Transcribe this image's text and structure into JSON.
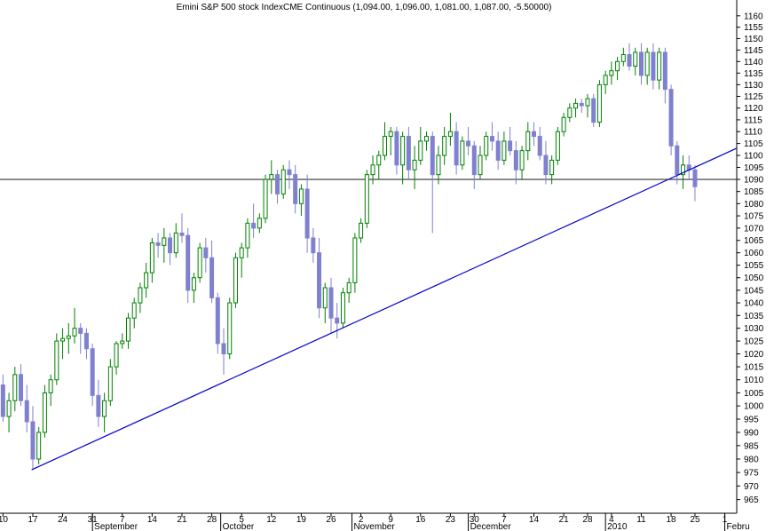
{
  "chart_data": {
    "type": "candlestick",
    "title": "Emini S&P 500 stock IndexCME Continuous (1,094.00, 1,096.00, 1,081.00, 1,087.00, -5.50000)",
    "log": true,
    "up_color": "#008000",
    "down_color": "#8080d0",
    "line_color": "#0000cc",
    "hline_color": "#333333",
    "x": [
      0,
      1,
      2,
      3,
      4,
      5,
      6,
      7,
      8,
      9,
      10,
      11,
      12,
      13,
      14,
      15,
      16,
      17,
      18,
      19,
      20,
      21,
      22,
      23,
      24,
      25,
      26,
      27,
      28,
      29,
      30,
      31,
      32,
      33,
      34,
      35,
      36,
      37,
      38,
      39,
      40,
      41,
      42,
      43,
      44,
      45,
      46,
      47,
      48,
      49,
      50,
      51,
      52,
      53,
      54,
      55,
      56,
      57,
      58,
      59,
      60,
      61,
      62,
      63,
      64,
      65,
      66,
      67,
      68,
      69,
      70,
      71,
      72,
      73,
      74,
      75,
      76,
      77,
      78,
      79,
      80,
      81,
      82,
      83,
      84,
      85,
      86,
      87,
      88,
      89,
      90,
      91,
      92,
      93,
      94,
      95,
      96,
      97,
      98,
      99,
      100,
      101,
      102,
      103,
      104,
      105,
      106,
      107,
      108,
      109,
      110,
      111,
      112,
      113,
      114,
      115,
      116
    ],
    "open": [
      1008,
      996,
      1002,
      1012,
      1002,
      994,
      980,
      990,
      1005,
      1010,
      1025,
      1026,
      1027,
      1030,
      1028,
      1022,
      1004,
      996,
      1002,
      1015,
      1024,
      1025,
      1034,
      1040,
      1046,
      1052,
      1064,
      1063,
      1066,
      1060,
      1068,
      1067,
      1045,
      1050,
      1062,
      1058,
      1042,
      1024,
      1020,
      1040,
      1058,
      1062,
      1072,
      1070,
      1074,
      1090,
      1092,
      1084,
      1094,
      1092,
      1080,
      1086,
      1066,
      1060,
      1038,
      1046,
      1034,
      1032,
      1044,
      1048,
      1066,
      1072,
      1092,
      1096,
      1100,
      1108,
      1110,
      1096,
      1108,
      1094,
      1098,
      1106,
      1108,
      1092,
      1100,
      1108,
      1110,
      1096,
      1106,
      1104,
      1092,
      1100,
      1108,
      1106,
      1098,
      1106,
      1102,
      1094,
      1102,
      1110,
      1108,
      1100,
      1092,
      1098,
      1110,
      1116,
      1120,
      1122,
      1121,
      1124,
      1114,
      1130,
      1134,
      1136,
      1140,
      1143,
      1138,
      1144,
      1134,
      1144,
      1132,
      1144,
      1128,
      1104,
      1092,
      1096,
      1094
    ],
    "high": [
      1012,
      1005,
      1015,
      1016,
      1008,
      1000,
      992,
      1008,
      1012,
      1028,
      1030,
      1032,
      1038,
      1032,
      1030,
      1024,
      1010,
      1005,
      1018,
      1025,
      1028,
      1036,
      1042,
      1048,
      1056,
      1066,
      1068,
      1070,
      1068,
      1072,
      1076,
      1070,
      1052,
      1064,
      1066,
      1065,
      1044,
      1030,
      1042,
      1060,
      1064,
      1074,
      1080,
      1076,
      1092,
      1098,
      1094,
      1096,
      1098,
      1096,
      1088,
      1092,
      1070,
      1066,
      1048,
      1050,
      1040,
      1046,
      1050,
      1068,
      1074,
      1094,
      1100,
      1102,
      1114,
      1112,
      1112,
      1110,
      1112,
      1104,
      1112,
      1110,
      1110,
      1104,
      1112,
      1118,
      1114,
      1108,
      1112,
      1106,
      1104,
      1110,
      1114,
      1110,
      1110,
      1112,
      1106,
      1104,
      1114,
      1114,
      1112,
      1106,
      1100,
      1112,
      1118,
      1122,
      1124,
      1124,
      1126,
      1126,
      1132,
      1136,
      1140,
      1142,
      1146,
      1148,
      1146,
      1148,
      1146,
      1148,
      1146,
      1146,
      1130,
      1106,
      1100,
      1100,
      1096
    ],
    "low": [
      994,
      990,
      998,
      1000,
      990,
      976,
      978,
      988,
      1000,
      1008,
      1018,
      1020,
      1024,
      1020,
      1018,
      1000,
      992,
      990,
      1000,
      1012,
      1022,
      1022,
      1030,
      1036,
      1042,
      1048,
      1058,
      1056,
      1055,
      1058,
      1064,
      1040,
      1040,
      1048,
      1052,
      1040,
      1020,
      1012,
      1018,
      1038,
      1050,
      1058,
      1066,
      1068,
      1072,
      1084,
      1080,
      1082,
      1086,
      1076,
      1075,
      1060,
      1056,
      1034,
      1032,
      1028,
      1026,
      1030,
      1040,
      1044,
      1064,
      1070,
      1088,
      1090,
      1098,
      1100,
      1092,
      1088,
      1090,
      1086,
      1096,
      1102,
      1068,
      1088,
      1096,
      1104,
      1092,
      1094,
      1100,
      1086,
      1090,
      1098,
      1102,
      1094,
      1096,
      1100,
      1088,
      1090,
      1098,
      1104,
      1098,
      1088,
      1088,
      1096,
      1108,
      1114,
      1116,
      1118,
      1116,
      1112,
      1112,
      1126,
      1130,
      1132,
      1138,
      1136,
      1134,
      1130,
      1130,
      1128,
      1128,
      1122,
      1100,
      1088,
      1086,
      1090,
      1081
    ],
    "close": [
      996,
      1002,
      1012,
      1002,
      994,
      980,
      990,
      1005,
      1010,
      1025,
      1026,
      1027,
      1030,
      1028,
      1022,
      1004,
      996,
      1002,
      1015,
      1024,
      1025,
      1034,
      1040,
      1046,
      1052,
      1064,
      1063,
      1066,
      1060,
      1068,
      1067,
      1045,
      1050,
      1062,
      1058,
      1042,
      1024,
      1020,
      1040,
      1058,
      1062,
      1072,
      1070,
      1074,
      1090,
      1092,
      1084,
      1094,
      1092,
      1080,
      1086,
      1066,
      1060,
      1038,
      1046,
      1034,
      1032,
      1044,
      1048,
      1066,
      1072,
      1092,
      1096,
      1100,
      1108,
      1110,
      1096,
      1108,
      1094,
      1098,
      1106,
      1108,
      1092,
      1100,
      1108,
      1110,
      1096,
      1106,
      1104,
      1092,
      1100,
      1108,
      1106,
      1098,
      1106,
      1102,
      1094,
      1102,
      1110,
      1108,
      1100,
      1092,
      1098,
      1110,
      1116,
      1120,
      1122,
      1121,
      1124,
      1114,
      1130,
      1134,
      1136,
      1140,
      1143,
      1138,
      1144,
      1134,
      1144,
      1132,
      1144,
      1128,
      1104,
      1092,
      1096,
      1094,
      1087
    ],
    "xlim": [
      -0.5,
      123
    ],
    "ylim": [
      960,
      1167
    ],
    "yticks": [
      965,
      970,
      975,
      980,
      985,
      990,
      995,
      1000,
      1005,
      1010,
      1015,
      1020,
      1025,
      1030,
      1035,
      1040,
      1045,
      1050,
      1055,
      1060,
      1065,
      1070,
      1075,
      1080,
      1085,
      1090,
      1095,
      1100,
      1105,
      1110,
      1115,
      1120,
      1125,
      1130,
      1135,
      1140,
      1145,
      1150,
      1155,
      1160
    ],
    "xticks": [
      {
        "value": 0,
        "label": "10"
      },
      {
        "value": 5,
        "label": "17"
      },
      {
        "value": 10,
        "label": "24"
      },
      {
        "value": 15,
        "label": "31"
      },
      {
        "value": 20,
        "label": "7"
      },
      {
        "value": 25,
        "label": "14"
      },
      {
        "value": 30,
        "label": "21"
      },
      {
        "value": 35,
        "label": "28"
      },
      {
        "value": 40,
        "label": "5"
      },
      {
        "value": 45,
        "label": "12"
      },
      {
        "value": 50,
        "label": "19"
      },
      {
        "value": 55,
        "label": "26"
      },
      {
        "value": 60,
        "label": "2"
      },
      {
        "value": 65,
        "label": "9"
      },
      {
        "value": 70,
        "label": "16"
      },
      {
        "value": 75,
        "label": "23"
      },
      {
        "value": 79,
        "label": "30"
      },
      {
        "value": 84,
        "label": "7"
      },
      {
        "value": 89,
        "label": "14"
      },
      {
        "value": 94,
        "label": "21"
      },
      {
        "value": 98,
        "label": "28"
      },
      {
        "value": 102,
        "label": "4"
      },
      {
        "value": 107,
        "label": "11"
      },
      {
        "value": 112,
        "label": "18"
      },
      {
        "value": 116,
        "label": "25"
      },
      {
        "value": 121,
        "label": "1"
      }
    ],
    "month_ticks": [
      {
        "value": 15,
        "label": "September"
      },
      {
        "value": 36.5,
        "label": "October"
      },
      {
        "value": 58.5,
        "label": "November"
      },
      {
        "value": 78,
        "label": "December"
      },
      {
        "value": 101,
        "label": "2010"
      },
      {
        "value": 121,
        "label": "Febru"
      }
    ],
    "trendline": {
      "x": [
        4.8,
        123
      ],
      "y": [
        976,
        1103
      ]
    },
    "hline": 1090
  }
}
